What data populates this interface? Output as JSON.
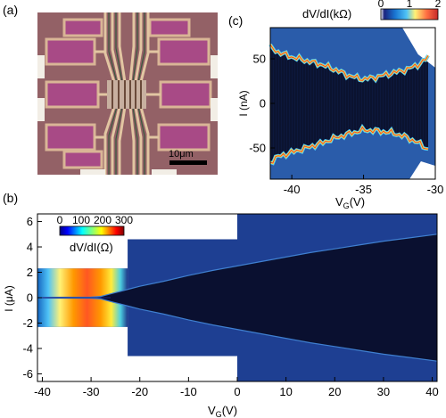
{
  "panels": {
    "a": {
      "label": "(a)",
      "scale_bar": "10μm"
    },
    "b": {
      "label": "(b)"
    },
    "c": {
      "label": "(c)"
    }
  },
  "chart_data": [
    {
      "panel": "a",
      "type": "other",
      "scale_bar_label": "10μm"
    },
    {
      "panel": "b",
      "type": "heatmap",
      "xlabel": "V",
      "xlabel_subscript": "G",
      "xlabel_unit": "(V)",
      "ylabel": "I (μA)",
      "xlim": [
        -41,
        41
      ],
      "ylim": [
        -6.6,
        6.6
      ],
      "x_ticks": [
        -40,
        -30,
        -20,
        -10,
        0,
        10,
        20,
        30,
        40
      ],
      "y_ticks": [
        -6,
        -4,
        -2,
        0,
        2,
        4,
        6
      ],
      "colorbar": {
        "label": "dV/dI(Ω)",
        "min": 0,
        "max": 300,
        "ticks": [
          0,
          100,
          200,
          300
        ],
        "colormap": "jet"
      },
      "measured_regions": [
        {
          "vg_range": [
            -41,
            -22.5
          ],
          "i_range": [
            -2.3,
            2.3
          ]
        },
        {
          "vg_range": [
            -22.5,
            0
          ],
          "i_range": [
            -4.6,
            4.6
          ]
        },
        {
          "vg_range": [
            0,
            41
          ],
          "i_range": [
            -6.6,
            6.6
          ]
        }
      ],
      "normal_state_resistance_band": {
        "vg_range": [
          -37,
          -29
        ],
        "dvdi_ohm": 270
      },
      "critical_current_uA": {
        "vg": [
          -40,
          -30,
          -28,
          -26,
          -24,
          -22,
          -20,
          -15,
          -10,
          -5,
          0,
          5,
          10,
          15,
          20,
          25,
          30,
          35,
          41
        ],
        "ic": [
          0.03,
          0.05,
          0.1,
          0.3,
          0.5,
          0.7,
          0.9,
          1.3,
          1.75,
          2.15,
          2.5,
          2.85,
          3.2,
          3.55,
          3.85,
          4.15,
          4.45,
          4.7,
          5.0
        ]
      }
    },
    {
      "panel": "c",
      "type": "heatmap",
      "xlabel": "V",
      "xlabel_subscript": "G",
      "xlabel_unit": "(V)",
      "ylabel": "I (nA)",
      "xlim": [
        -41.5,
        -30
      ],
      "ylim": [
        -85,
        85
      ],
      "x_ticks": [
        -40,
        -35,
        -30
      ],
      "y_ticks": [
        -50,
        0,
        50
      ],
      "colorbar": {
        "label": "dV/dI(kΩ)",
        "min": 0,
        "max": 2,
        "ticks": [
          0,
          1,
          2
        ],
        "colormap": "jet"
      },
      "switching_current_nA": {
        "vg": [
          -41.5,
          -41,
          -40,
          -39,
          -38,
          -37,
          -36,
          -35,
          -34,
          -33,
          -32,
          -31,
          -30.5
        ],
        "is": [
          63,
          58,
          52,
          48,
          44,
          38,
          31,
          27,
          30,
          34,
          38,
          45,
          52
        ]
      },
      "retrapping_current_nA": {
        "vg": [
          -41.5,
          -41,
          -40,
          -39,
          -38,
          -37,
          -36,
          -35,
          -34,
          -33,
          -32,
          -31,
          -30.5
        ],
        "ir": [
          -66,
          -60,
          -55,
          -50,
          -45,
          -39,
          -34,
          -30,
          -31,
          -33,
          -38,
          -46,
          -52
        ]
      }
    }
  ]
}
